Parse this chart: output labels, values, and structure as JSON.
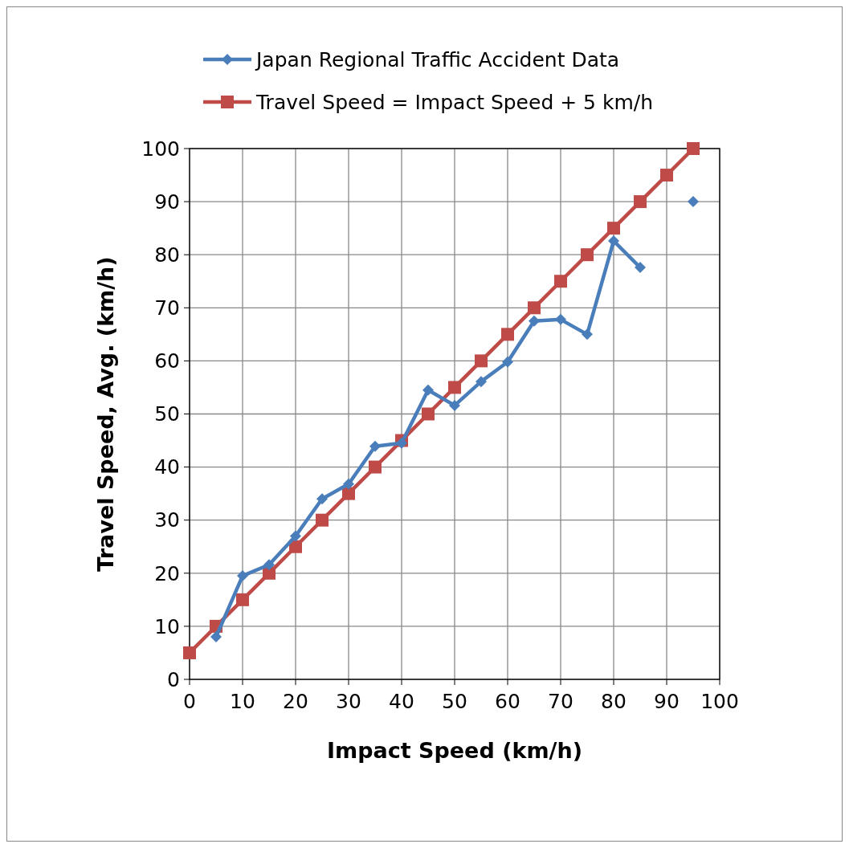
{
  "chart_data": {
    "type": "line",
    "xlabel": "Impact Speed (km/h)",
    "ylabel": "Travel Speed, Avg. (km/h)",
    "x": [
      0,
      5,
      10,
      15,
      20,
      25,
      30,
      35,
      40,
      45,
      50,
      55,
      60,
      65,
      70,
      75,
      80,
      85,
      90,
      95
    ],
    "series": [
      {
        "name": "Japan Regional Traffic Accident Data",
        "color": "#4a7ebb",
        "marker": "diamond",
        "values": [
          null,
          8,
          19.5,
          21.6,
          27,
          34,
          36.8,
          43.9,
          44.5,
          54.5,
          51.6,
          56.1,
          59.8,
          67.5,
          67.8,
          65,
          82.6,
          77.6,
          null,
          90
        ]
      },
      {
        "name": "Travel Speed = Impact Speed + 5 km/h",
        "color": "#be4b48",
        "marker": "square",
        "values": [
          5,
          10,
          15,
          20,
          25,
          30,
          35,
          40,
          45,
          50,
          55,
          60,
          65,
          70,
          75,
          80,
          85,
          90,
          95,
          100
        ]
      }
    ],
    "xlim": [
      0,
      100
    ],
    "ylim": [
      0,
      100
    ],
    "xticks": [
      0,
      10,
      20,
      30,
      40,
      50,
      60,
      70,
      80,
      90,
      100
    ],
    "yticks": [
      0,
      10,
      20,
      30,
      40,
      50,
      60,
      70,
      80,
      90,
      100
    ],
    "grid": true,
    "legend": "top",
    "line_style": "solid"
  }
}
